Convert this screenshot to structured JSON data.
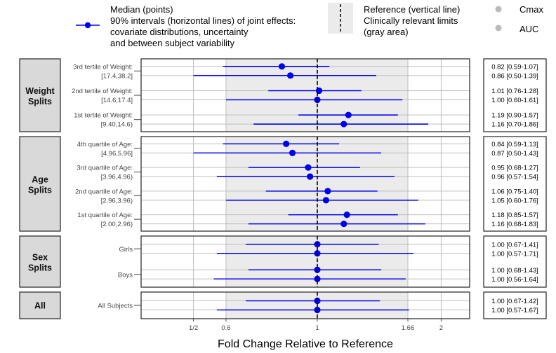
{
  "legend": {
    "median_label": [
      "Median (points)",
      "90% intervals (horizontal lines) of joint effects:",
      "covariate distributions, uncertainty",
      "and between subject variability"
    ],
    "reference_label": [
      "Reference (vertical line)",
      "Clinically relevant limits",
      "(gray area)"
    ],
    "series_labels": [
      "Cmax",
      "AUC"
    ]
  },
  "colors": {
    "series": "#0000ee",
    "reference": "#000000",
    "ref_area": "#ebebeb",
    "strip": "#d9d9d9",
    "grid": "#bdbdbd"
  },
  "chart_data": {
    "type": "forest",
    "xlabel": "Fold Change Relative to Reference",
    "xscale": "log",
    "xlim": [
      0.4,
      3.0
    ],
    "x_ticks": [
      {
        "value": 0.5,
        "label": "1/2"
      },
      {
        "value": 0.6,
        "label": "0.6"
      },
      {
        "value": 1.0,
        "label": "1"
      },
      {
        "value": 1.66,
        "label": "1.66"
      },
      {
        "value": 2.0,
        "label": "2"
      }
    ],
    "reference_value": 1.0,
    "reference_area": [
      0.6,
      1.66
    ],
    "series": [
      {
        "name": "Cmax"
      },
      {
        "name": "AUC"
      }
    ],
    "panels": [
      {
        "strip": [
          "Weight",
          "Splits"
        ],
        "rows": [
          {
            "label": [
              "3rd tertile of Weight:",
              "[17.4,38.2]"
            ],
            "values": [
              {
                "series": "Cmax",
                "median": 0.82,
                "low": 0.59,
                "high": 1.07,
                "text": "0.82 [0.59-1.07]"
              },
              {
                "series": "AUC",
                "median": 0.86,
                "low": 0.5,
                "high": 1.39,
                "text": "0.86 [0.50-1.39]"
              }
            ]
          },
          {
            "label": [
              "2nd tertile of Weight:",
              "[14.6,17.4]"
            ],
            "values": [
              {
                "series": "Cmax",
                "median": 1.01,
                "low": 0.76,
                "high": 1.28,
                "text": "1.01 [0.76-1.28]"
              },
              {
                "series": "AUC",
                "median": 1.0,
                "low": 0.6,
                "high": 1.61,
                "text": "1.00 [0.60-1.61]"
              }
            ]
          },
          {
            "label": [
              "1st tertile of Weight:",
              "[9.40,14.6)"
            ],
            "values": [
              {
                "series": "Cmax",
                "median": 1.19,
                "low": 0.9,
                "high": 1.57,
                "text": "1.19 [0.90-1.57]"
              },
              {
                "series": "AUC",
                "median": 1.16,
                "low": 0.7,
                "high": 1.86,
                "text": "1.16 [0.70-1.86]"
              }
            ]
          }
        ]
      },
      {
        "strip": [
          "Age",
          "Splits"
        ],
        "rows": [
          {
            "label": [
              "4th quartile of Age:",
              "[4.96,5.96]"
            ],
            "values": [
              {
                "series": "Cmax",
                "median": 0.84,
                "low": 0.59,
                "high": 1.13,
                "text": "0.84 [0.59-1.13]"
              },
              {
                "series": "AUC",
                "median": 0.87,
                "low": 0.5,
                "high": 1.43,
                "text": "0.87 [0.50-1.43]"
              }
            ]
          },
          {
            "label": [
              "3rd quartile of Age:",
              "[3.96,4.96)"
            ],
            "values": [
              {
                "series": "Cmax",
                "median": 0.95,
                "low": 0.68,
                "high": 1.27,
                "text": "0.95 [0.68-1.27]"
              },
              {
                "series": "AUC",
                "median": 0.96,
                "low": 0.57,
                "high": 1.54,
                "text": "0.96 [0.57-1.54]"
              }
            ]
          },
          {
            "label": [
              "2nd quartile of Age:",
              "[2.96,3.96)"
            ],
            "values": [
              {
                "series": "Cmax",
                "median": 1.06,
                "low": 0.75,
                "high": 1.4,
                "text": "1.06 [0.75-1.40]"
              },
              {
                "series": "AUC",
                "median": 1.05,
                "low": 0.6,
                "high": 1.76,
                "text": "1.05 [0.60-1.76]"
              }
            ]
          },
          {
            "label": [
              "1st quartile of Age:",
              "[2.00,2.96)"
            ],
            "values": [
              {
                "series": "Cmax",
                "median": 1.18,
                "low": 0.85,
                "high": 1.57,
                "text": "1.18 [0.85-1.57]"
              },
              {
                "series": "AUC",
                "median": 1.16,
                "low": 0.68,
                "high": 1.83,
                "text": "1.16 [0.68-1.83]"
              }
            ]
          }
        ]
      },
      {
        "strip": [
          "Sex",
          "Splits"
        ],
        "rows": [
          {
            "label": [
              "Girls"
            ],
            "values": [
              {
                "series": "Cmax",
                "median": 1.0,
                "low": 0.67,
                "high": 1.41,
                "text": "1.00 [0.67-1.41]"
              },
              {
                "series": "AUC",
                "median": 1.0,
                "low": 0.57,
                "high": 1.71,
                "text": "1.00 [0.57-1.71]"
              }
            ]
          },
          {
            "label": [
              "Boys"
            ],
            "values": [
              {
                "series": "Cmax",
                "median": 1.0,
                "low": 0.68,
                "high": 1.43,
                "text": "1.00 [0.68-1.43]"
              },
              {
                "series": "AUC",
                "median": 1.0,
                "low": 0.56,
                "high": 1.64,
                "text": "1.00 [0.56-1.64]"
              }
            ]
          }
        ]
      },
      {
        "strip": [
          "All"
        ],
        "rows": [
          {
            "label": [
              "All Subjects"
            ],
            "values": [
              {
                "series": "Cmax",
                "median": 1.0,
                "low": 0.67,
                "high": 1.42,
                "text": "1.00 [0.67-1.42]"
              },
              {
                "series": "AUC",
                "median": 1.0,
                "low": 0.57,
                "high": 1.67,
                "text": "1.00 [0.57-1.67]"
              }
            ]
          }
        ]
      }
    ]
  }
}
